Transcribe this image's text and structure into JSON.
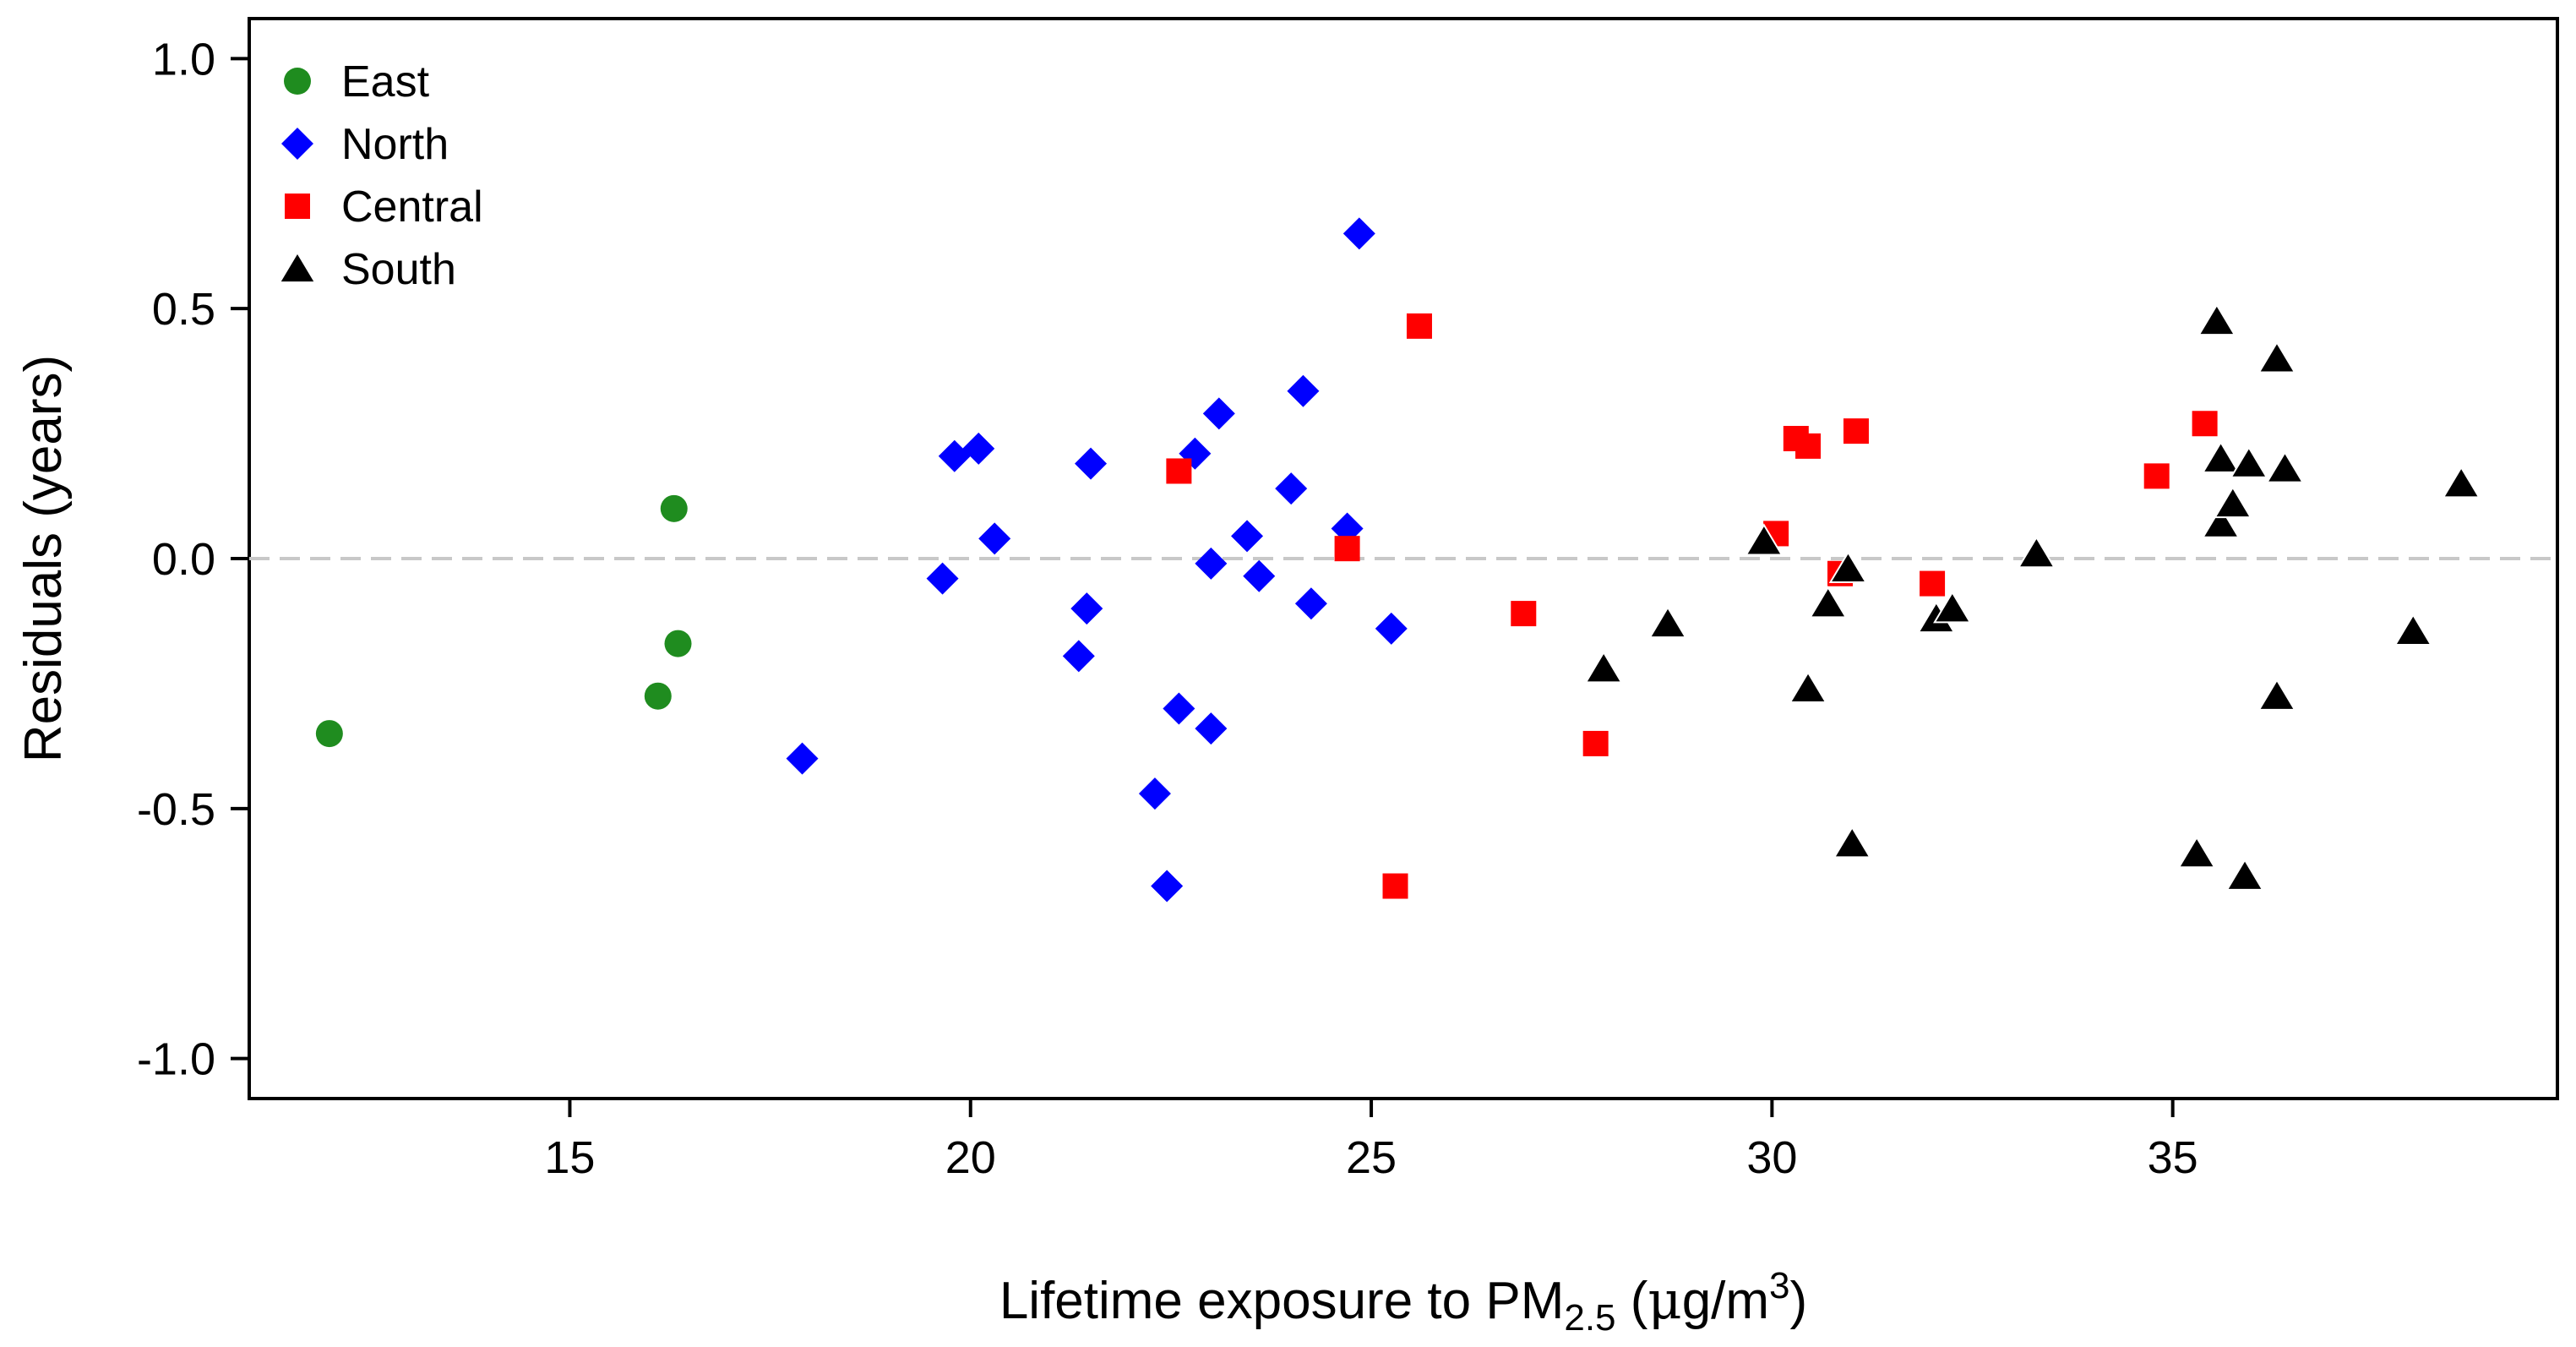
{
  "chart_data": {
    "type": "scatter",
    "title": "",
    "xlabel": {
      "prefix": "Lifetime exposure to PM",
      "subscript": "2.5",
      "unit_open": " (",
      "unit_mu": "μ",
      "unit_mid": "g/m",
      "unit_sup": "3",
      "unit_close": ")"
    },
    "ylabel": "Residuals (years)",
    "xlim": [
      11,
      39.8
    ],
    "ylim": [
      -1.08,
      1.08
    ],
    "x_ticks": [
      15,
      20,
      25,
      30,
      35
    ],
    "x_tick_labels": [
      "15",
      "20",
      "25",
      "30",
      "35"
    ],
    "y_ticks": [
      -1.0,
      -0.5,
      0.0,
      0.5,
      1.0
    ],
    "y_tick_labels": [
      "-1.0",
      "-0.5",
      "0.0",
      "0.5",
      "1.0"
    ],
    "reference_line": {
      "y": 0.0,
      "style": "dashed",
      "color": "#c8c8c8"
    },
    "grid": false,
    "legend_position": "top-left",
    "series": [
      {
        "name": "East",
        "marker": "circle",
        "color": "#1f8c1f",
        "points": [
          [
            12.0,
            -0.35
          ],
          [
            16.1,
            -0.275
          ],
          [
            16.3,
            0.1
          ],
          [
            16.35,
            -0.17
          ]
        ]
      },
      {
        "name": "North",
        "marker": "diamond",
        "color": "#0000ff",
        "points": [
          [
            17.9,
            -0.4
          ],
          [
            19.65,
            -0.04
          ],
          [
            19.8,
            0.205
          ],
          [
            20.1,
            0.22
          ],
          [
            20.3,
            0.04
          ],
          [
            21.35,
            -0.195
          ],
          [
            21.45,
            -0.1
          ],
          [
            21.5,
            0.19
          ],
          [
            22.3,
            -0.47
          ],
          [
            22.45,
            -0.655
          ],
          [
            22.6,
            -0.3
          ],
          [
            22.8,
            0.21
          ],
          [
            23.0,
            -0.01
          ],
          [
            23.0,
            -0.34
          ],
          [
            23.1,
            0.29
          ],
          [
            23.45,
            0.045
          ],
          [
            23.6,
            -0.035
          ],
          [
            24.0,
            0.14
          ],
          [
            24.15,
            0.335
          ],
          [
            24.25,
            -0.09
          ],
          [
            24.7,
            0.06
          ],
          [
            24.85,
            0.65
          ],
          [
            25.25,
            -0.14
          ]
        ]
      },
      {
        "name": "Central",
        "marker": "square",
        "color": "#ff0000",
        "points": [
          [
            22.6,
            0.175
          ],
          [
            24.7,
            0.02
          ],
          [
            25.3,
            -0.655
          ],
          [
            25.6,
            0.465
          ],
          [
            26.9,
            -0.11
          ],
          [
            27.8,
            -0.37
          ],
          [
            30.05,
            0.05
          ],
          [
            30.3,
            0.24
          ],
          [
            30.45,
            0.225
          ],
          [
            30.85,
            -0.03
          ],
          [
            31.05,
            0.255
          ],
          [
            32.0,
            -0.05
          ],
          [
            34.8,
            0.165
          ],
          [
            35.4,
            0.27
          ]
        ]
      },
      {
        "name": "South",
        "marker": "triangle",
        "color": "#000000",
        "points": [
          [
            27.9,
            -0.22
          ],
          [
            28.7,
            -0.13
          ],
          [
            29.9,
            0.035
          ],
          [
            30.45,
            -0.26
          ],
          [
            30.7,
            -0.09
          ],
          [
            30.95,
            -0.02
          ],
          [
            31.0,
            -0.57
          ],
          [
            32.05,
            -0.12
          ],
          [
            32.25,
            -0.1
          ],
          [
            33.3,
            0.01
          ],
          [
            35.3,
            -0.59
          ],
          [
            35.55,
            0.475
          ],
          [
            35.6,
            0.2
          ],
          [
            35.6,
            0.07
          ],
          [
            35.75,
            0.11
          ],
          [
            35.9,
            -0.635
          ],
          [
            35.95,
            0.19
          ],
          [
            36.3,
            -0.275
          ],
          [
            36.3,
            0.4
          ],
          [
            36.4,
            0.18
          ],
          [
            38.0,
            -0.145
          ],
          [
            38.6,
            0.15
          ]
        ]
      }
    ]
  }
}
